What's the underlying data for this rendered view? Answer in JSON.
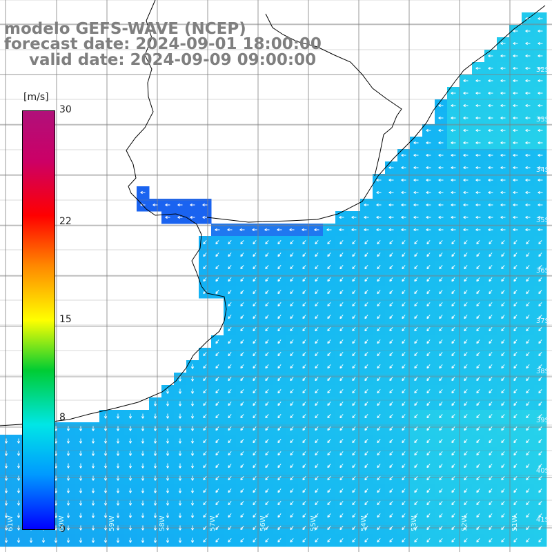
{
  "header": {
    "line1": "modelo GEFS-WAVE (NCEP)",
    "line2": "forecast date: 2024-09-01 18:00:00",
    "line3": "valid date: 2024-09-09 09:00:00"
  },
  "colorbar": {
    "unit": "[m/s]",
    "min": 0,
    "max": 30,
    "ticks": [
      "30",
      "22",
      "15",
      "8",
      "0"
    ],
    "tick_values": [
      30,
      22,
      15,
      8,
      0
    ],
    "colors": [
      "#0000ff",
      "#0099ff",
      "#00e6e6",
      "#00cc33",
      "#ffff00",
      "#ff8800",
      "#ff0000",
      "#cc0066",
      "#b0107a"
    ]
  },
  "map": {
    "land_color": "#ffffff",
    "coastline_color": "#000000",
    "grid_color": "#808080",
    "arrow_color": "#ffffff",
    "field_colors": {
      "low": "#1e6ff0",
      "mid": "#13b4f4",
      "high": "#2fdfe6"
    },
    "lat_labels": [
      "32S",
      "33S",
      "34S",
      "35S",
      "36S",
      "37S",
      "38S",
      "39S",
      "40S",
      "41S"
    ],
    "lon_labels": [
      "61W",
      "60W",
      "59W",
      "58W",
      "57W",
      "56W",
      "55W",
      "54W",
      "53W",
      "52W",
      "51W"
    ]
  }
}
